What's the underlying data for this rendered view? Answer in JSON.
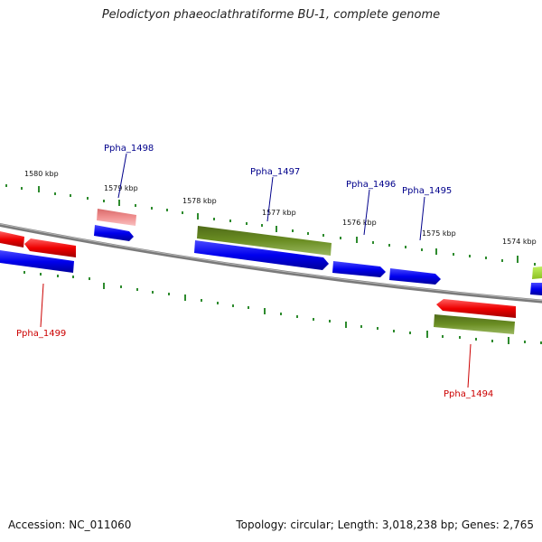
{
  "title": "Pelodictyon phaeoclathratiforme BU-1, complete genome",
  "footer": {
    "accession": "Accession: NC_011060",
    "summary": "Topology: circular; Length: 3,018,238 bp; Genes: 2,765"
  },
  "colors": {
    "forward_gene": "#0000ee",
    "reverse_gene": "#ee0000",
    "pseudo_gene": "#f08080",
    "feature_olive": "#6b8e23",
    "feature_lime": "#9acd32",
    "tick": "#2e8b2e",
    "backbone": "#808080",
    "label_blue": "#00008b",
    "label_red": "#cc0000"
  },
  "kbp_labels": [
    "1580 kbp",
    "1579 kbp",
    "1578 kbp",
    "1577 kbp",
    "1576 kbp",
    "1575 kbp",
    "1574 kbp"
  ],
  "gene_labels": [
    {
      "text": "Ppha_1499",
      "color": "red"
    },
    {
      "text": "Ppha_1498",
      "color": "blue"
    },
    {
      "text": "Ppha_1497",
      "color": "blue"
    },
    {
      "text": "Ppha_1496",
      "color": "blue"
    },
    {
      "text": "Ppha_1495",
      "color": "blue"
    },
    {
      "text": "Ppha_1494",
      "color": "red"
    }
  ]
}
